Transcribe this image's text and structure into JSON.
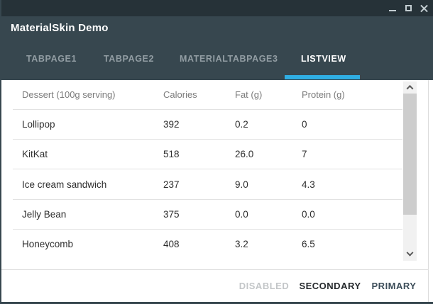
{
  "window": {
    "title": "MaterialSkin Demo",
    "controls": [
      {
        "name": "minimize",
        "icon": "minimize-icon"
      },
      {
        "name": "maximize",
        "icon": "maximize-icon"
      },
      {
        "name": "close",
        "icon": "close-icon"
      }
    ]
  },
  "tabs": [
    {
      "label": "TABPAGE1",
      "active": false
    },
    {
      "label": "TABPAGE2",
      "active": false
    },
    {
      "label": "MATERIALTABPAGE3",
      "active": false
    },
    {
      "label": "LISTVIEW",
      "active": true
    }
  ],
  "table": {
    "columns": [
      "Dessert (100g serving)",
      "Calories",
      "Fat (g)",
      "Protein (g)"
    ],
    "rows": [
      [
        "Lollipop",
        "392",
        "0.2",
        "0"
      ],
      [
        "KitKat",
        "518",
        "26.0",
        "7"
      ],
      [
        "Ice cream sandwich",
        "237",
        "9.0",
        "4.3"
      ],
      [
        "Jelly Bean",
        "375",
        "0.0",
        "0.0"
      ],
      [
        "Honeycomb",
        "408",
        "3.2",
        "6.5"
      ]
    ]
  },
  "buttons": [
    {
      "label": "DISABLED",
      "state": "disabled"
    },
    {
      "label": "SECONDARY",
      "state": "enabled"
    },
    {
      "label": "PRIMARY",
      "state": "enabled"
    }
  ],
  "colors": {
    "status_bar": "#263238",
    "title_bar": "#37474F",
    "tab_indicator": "#2FAEE3",
    "tab_inactive_text": "#929da3",
    "tab_active_text": "#ffffff",
    "row_divider": "#e2e2e2",
    "header_text": "#7b7b7b",
    "row_text": "#2e2e2e",
    "scrollbar_track": "#f1f1f1",
    "scrollbar_thumb": "#cdcdcd",
    "disabled_button_text": "#c3c6c8",
    "secondary_button_text": "#25292c",
    "primary_button_text": "#3c4d59"
  }
}
